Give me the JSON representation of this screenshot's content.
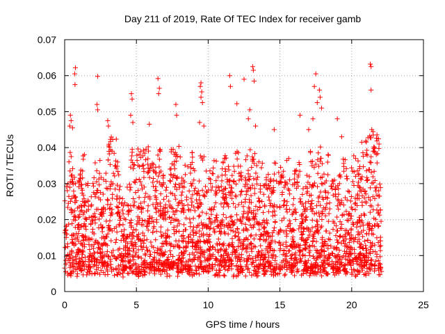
{
  "chart_data": {
    "type": "scatter",
    "title": "Day 211 of 2019, Rate Of TEC Index for receiver gamb",
    "xlabel": "GPS time / hours",
    "ylabel": "ROTI / TECUs",
    "xlim": [
      0,
      25
    ],
    "ylim": [
      0,
      0.07
    ],
    "x_ticks": [
      0,
      5,
      10,
      15,
      20,
      25
    ],
    "x_tick_labels": [
      "0",
      "5",
      "10",
      "15",
      "20",
      "25"
    ],
    "y_ticks": [
      0,
      0.01,
      0.02,
      0.03,
      0.04,
      0.05,
      0.06,
      0.07
    ],
    "y_tick_labels": [
      "0",
      "0.01",
      "0.02",
      "0.03",
      "0.04",
      "0.05",
      "0.06",
      "0.07"
    ],
    "grid": true,
    "marker": "+",
    "marker_color": "#ff0000",
    "series": [
      {
        "name": "ROTI",
        "color": "#ff0000",
        "data_range_hours": [
          0,
          22.1
        ],
        "points": [
          [
            0.75,
            0.0622
          ],
          [
            0.7,
            0.0605
          ],
          [
            0.72,
            0.0575
          ],
          [
            2.3,
            0.0598
          ],
          [
            0.4,
            0.049
          ],
          [
            0.45,
            0.0475
          ],
          [
            0.35,
            0.046
          ],
          [
            0.55,
            0.0455
          ],
          [
            2.25,
            0.052
          ],
          [
            2.3,
            0.0505
          ],
          [
            3.0,
            0.0475
          ],
          [
            3.05,
            0.046
          ],
          [
            4.65,
            0.055
          ],
          [
            4.7,
            0.0535
          ],
          [
            4.6,
            0.049
          ],
          [
            4.75,
            0.047
          ],
          [
            5.9,
            0.0465
          ],
          [
            6.5,
            0.0592
          ],
          [
            6.6,
            0.0565
          ],
          [
            6.55,
            0.055
          ],
          [
            7.75,
            0.052
          ],
          [
            7.8,
            0.049
          ],
          [
            9.5,
            0.058
          ],
          [
            9.45,
            0.057
          ],
          [
            9.55,
            0.0555
          ],
          [
            9.5,
            0.054
          ],
          [
            9.6,
            0.0525
          ],
          [
            9.4,
            0.047
          ],
          [
            9.7,
            0.046
          ],
          [
            11.5,
            0.06
          ],
          [
            11.55,
            0.057
          ],
          [
            12.0,
            0.0522
          ],
          [
            12.5,
            0.059
          ],
          [
            13.1,
            0.0625
          ],
          [
            13.15,
            0.0615
          ],
          [
            13.2,
            0.0585
          ],
          [
            12.9,
            0.0505
          ],
          [
            12.8,
            0.048
          ],
          [
            13.3,
            0.046
          ],
          [
            14.6,
            0.045
          ],
          [
            16.4,
            0.049
          ],
          [
            17.0,
            0.045
          ],
          [
            17.5,
            0.0605
          ],
          [
            17.4,
            0.057
          ],
          [
            17.8,
            0.054
          ],
          [
            17.9,
            0.051
          ],
          [
            17.3,
            0.048
          ],
          [
            17.75,
            0.056
          ],
          [
            17.6,
            0.0525
          ],
          [
            19.0,
            0.048
          ],
          [
            19.3,
            0.043
          ],
          [
            20.7,
            0.0415
          ],
          [
            21.3,
            0.0632
          ],
          [
            21.35,
            0.0625
          ],
          [
            21.35,
            0.056
          ],
          [
            21.4,
            0.045
          ],
          [
            21.5,
            0.0435
          ],
          [
            21.6,
            0.04
          ]
        ]
      }
    ]
  }
}
